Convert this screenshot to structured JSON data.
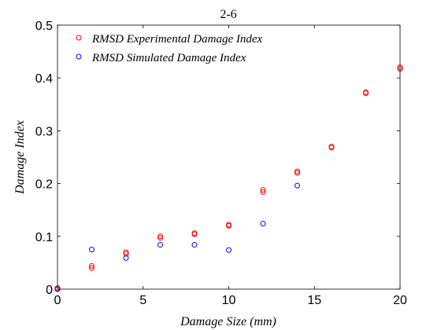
{
  "chart_data": {
    "type": "scatter",
    "title": "2-6",
    "xlabel": "Damage Size (mm)",
    "ylabel": "Damage Index",
    "xlim": [
      0,
      20
    ],
    "ylim": [
      0,
      0.5
    ],
    "xticks": [
      0,
      5,
      10,
      15,
      20
    ],
    "yticks": [
      0,
      0.1,
      0.2,
      0.3,
      0.4,
      0.5
    ],
    "xtick_labels": [
      "0",
      "5",
      "10",
      "15",
      "20"
    ],
    "ytick_labels": [
      "0",
      "0.1",
      "0.2",
      "0.3",
      "0.4",
      "0.5"
    ],
    "grid": false,
    "legend_position": "top-left",
    "series": [
      {
        "name": "RMSD Experimental Damage Index",
        "color": "#ff0000",
        "marker": "open-circle",
        "points": [
          [
            0,
            0.0
          ],
          [
            0,
            0.002
          ],
          [
            2,
            0.04
          ],
          [
            2,
            0.044
          ],
          [
            4,
            0.067
          ],
          [
            4,
            0.07
          ],
          [
            6,
            0.097
          ],
          [
            6,
            0.1
          ],
          [
            8,
            0.104
          ],
          [
            8,
            0.106
          ],
          [
            10,
            0.12
          ],
          [
            10,
            0.122
          ],
          [
            12,
            0.184
          ],
          [
            12,
            0.188
          ],
          [
            14,
            0.22
          ],
          [
            14,
            0.223
          ],
          [
            16,
            0.268
          ],
          [
            16,
            0.27
          ],
          [
            18,
            0.371
          ],
          [
            18,
            0.373
          ],
          [
            20,
            0.417
          ],
          [
            20,
            0.42
          ]
        ]
      },
      {
        "name": "RMSD Simulated Damage Index",
        "color": "#0000ff",
        "marker": "open-circle",
        "points": [
          [
            0,
            0.0
          ],
          [
            2,
            0.075
          ],
          [
            4,
            0.059
          ],
          [
            6,
            0.084
          ],
          [
            8,
            0.084
          ],
          [
            10,
            0.074
          ],
          [
            12,
            0.124
          ],
          [
            14,
            0.196
          ]
        ]
      }
    ]
  }
}
